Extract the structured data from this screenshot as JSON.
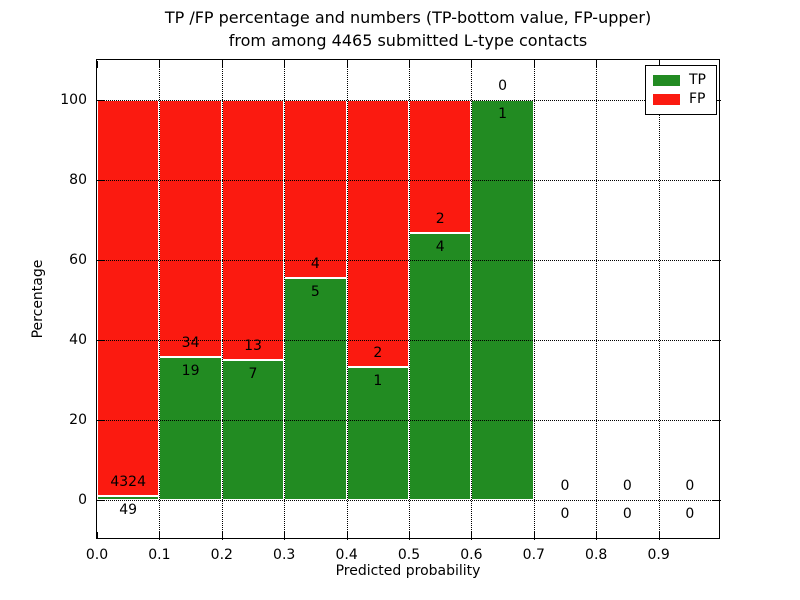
{
  "chart_data": {
    "type": "bar",
    "stacked": true,
    "y_units": "percent_of_bin_total",
    "title_lines": [
      "TP /FP percentage and numbers (TP-bottom value, FP-upper)",
      "from among 4465 submitted L-type contacts"
    ],
    "xlabel": "Predicted probability",
    "ylabel": "Percentage",
    "xlim": [
      0.0,
      1.0
    ],
    "ylim": [
      -10,
      110
    ],
    "xticks": [
      "0.0",
      "0.1",
      "0.2",
      "0.3",
      "0.4",
      "0.5",
      "0.6",
      "0.7",
      "0.8",
      "0.9"
    ],
    "yticks": [
      0,
      20,
      40,
      60,
      80,
      100
    ],
    "grid": "dotted-black-both-axes",
    "legend_position": "upper right",
    "series": [
      {
        "name": "TP",
        "color": "#228b22"
      },
      {
        "name": "FP",
        "color": "#fb1a10"
      }
    ],
    "bar_edge_color": "#ffffff",
    "bins": [
      {
        "range": [
          0.0,
          0.1
        ],
        "tp": 49,
        "fp": 4324
      },
      {
        "range": [
          0.1,
          0.2
        ],
        "tp": 19,
        "fp": 34
      },
      {
        "range": [
          0.2,
          0.3
        ],
        "tp": 7,
        "fp": 13
      },
      {
        "range": [
          0.3,
          0.4
        ],
        "tp": 5,
        "fp": 4
      },
      {
        "range": [
          0.4,
          0.5
        ],
        "tp": 1,
        "fp": 2
      },
      {
        "range": [
          0.5,
          0.6
        ],
        "tp": 4,
        "fp": 2
      },
      {
        "range": [
          0.6,
          0.7
        ],
        "tp": 1,
        "fp": 0
      },
      {
        "range": [
          0.7,
          0.8
        ],
        "tp": 0,
        "fp": 0
      },
      {
        "range": [
          0.8,
          0.9
        ],
        "tp": 0,
        "fp": 0
      },
      {
        "range": [
          0.9,
          1.0
        ],
        "tp": 0,
        "fp": 0
      }
    ]
  }
}
